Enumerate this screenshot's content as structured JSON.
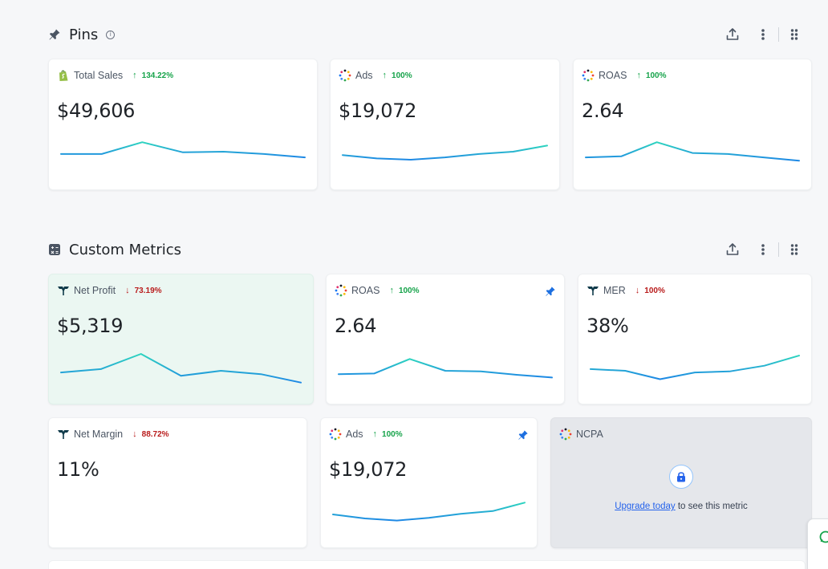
{
  "sections": {
    "pins": {
      "title": "Pins",
      "info": "i",
      "cards": [
        {
          "label": "Total Sales",
          "delta": "134.22%",
          "direction": "up",
          "value": "$49,606",
          "source": "shopify-icon",
          "trend": [
            0.45,
            0.45,
            0.1,
            0.4,
            0.38,
            0.45,
            0.55
          ]
        },
        {
          "label": "Ads",
          "delta": "100%",
          "direction": "up",
          "value": "$19,072",
          "source": "ads-icon",
          "trend": [
            0.48,
            0.58,
            0.62,
            0.55,
            0.45,
            0.38,
            0.2
          ]
        },
        {
          "label": "ROAS",
          "delta": "100%",
          "direction": "up",
          "value": "2.64",
          "source": "ads-icon",
          "trend": [
            0.55,
            0.52,
            0.1,
            0.42,
            0.45,
            0.55,
            0.65
          ]
        }
      ]
    },
    "custom": {
      "title": "Custom Metrics",
      "cards": [
        {
          "label": "Net Profit",
          "delta": "73.19%",
          "direction": "down",
          "value": "$5,319",
          "source": "triple-whale-icon",
          "trend": [
            0.55,
            0.45,
            0.0,
            0.65,
            0.5,
            0.6,
            0.85
          ]
        },
        {
          "label": "ROAS",
          "delta": "100%",
          "direction": "up",
          "value": "2.64",
          "source": "ads-icon",
          "pinned": true,
          "trend": [
            0.6,
            0.58,
            0.15,
            0.5,
            0.52,
            0.62,
            0.7
          ]
        },
        {
          "label": "MER",
          "delta": "100%",
          "direction": "down",
          "value": "38%",
          "source": "triple-whale-icon",
          "trend": [
            0.45,
            0.5,
            0.75,
            0.55,
            0.52,
            0.35,
            0.05
          ]
        },
        {
          "label": "Net Margin",
          "delta": "88.72%",
          "direction": "down",
          "value": "11%",
          "source": "triple-whale-icon"
        },
        {
          "label": "Ads",
          "delta": "100%",
          "direction": "up",
          "value": "$19,072",
          "source": "ads-icon",
          "pinned": true,
          "trend": [
            0.5,
            0.62,
            0.68,
            0.6,
            0.48,
            0.4,
            0.15
          ]
        },
        {
          "label": "NCPA",
          "source": "ads-icon",
          "locked": true,
          "upgrade_link": "Upgrade today",
          "upgrade_text": " to see this metric"
        }
      ]
    }
  },
  "colors": {
    "accent": "#2563eb",
    "up": "#16a34a",
    "down": "#b91c1c",
    "spark_start": "#2dd4bf",
    "spark_end": "#1e88e5"
  }
}
